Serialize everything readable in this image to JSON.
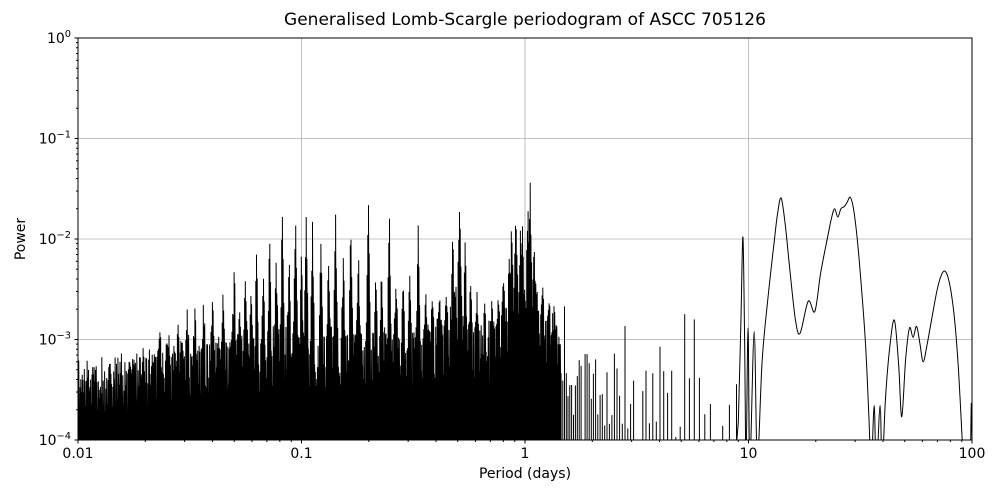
{
  "chart_data": {
    "type": "line",
    "title": "Generalised Lomb-Scargle periodogram of ASCC 705126",
    "xlabel": "Period (days)",
    "ylabel": "Power",
    "x_scale": "log",
    "y_scale": "log",
    "xlim": [
      0.01,
      100
    ],
    "ylim": [
      0.0001,
      1
    ],
    "grid": true,
    "legend": "none",
    "x_ticks": [
      {
        "value": 0.01,
        "label": "0.01"
      },
      {
        "value": 0.1,
        "label": "0.1"
      },
      {
        "value": 1,
        "label": "1"
      },
      {
        "value": 10,
        "label": "10"
      },
      {
        "value": 100,
        "label": "100"
      }
    ],
    "y_ticks": [
      {
        "value": 1,
        "base": "10",
        "exp": "0"
      },
      {
        "value": 0.1,
        "base": "10",
        "exp": "−1"
      },
      {
        "value": 0.01,
        "base": "10",
        "exp": "−2"
      },
      {
        "value": 0.001,
        "base": "10",
        "exp": "−3"
      },
      {
        "value": 0.0001,
        "base": "10",
        "exp": "−4"
      }
    ],
    "colors": {
      "line": "#000000",
      "grid": "#b0b0b0",
      "axes": "#000000",
      "background": "#ffffff",
      "text": "#000000"
    },
    "main_peaks": [
      {
        "period": 1.055,
        "power": 0.0365
      },
      {
        "period": 0.199,
        "power": 0.03
      },
      {
        "period": 28.5,
        "power": 0.026
      },
      {
        "period": 14.0,
        "power": 0.0255
      },
      {
        "period": 0.51,
        "power": 0.0233
      },
      {
        "period": 0.247,
        "power": 0.0228
      },
      {
        "period": 0.082,
        "power": 0.0208
      },
      {
        "period": 9.44,
        "power": 0.0105
      }
    ],
    "spikes": [
      [
        0.0232,
        0.0014
      ],
      [
        0.0255,
        0.0012
      ],
      [
        0.028,
        0.0016
      ],
      [
        0.0308,
        0.002
      ],
      [
        0.0334,
        0.0022
      ],
      [
        0.0364,
        0.0024
      ],
      [
        0.04,
        0.0026
      ],
      [
        0.0445,
        0.0028
      ],
      [
        0.05,
        0.0055
      ],
      [
        0.053,
        0.0022
      ],
      [
        0.056,
        0.004
      ],
      [
        0.0595,
        0.003
      ],
      [
        0.063,
        0.0081
      ],
      [
        0.0675,
        0.0045
      ],
      [
        0.072,
        0.0123
      ],
      [
        0.077,
        0.006
      ],
      [
        0.082,
        0.0208
      ],
      [
        0.088,
        0.0075
      ],
      [
        0.094,
        0.0181
      ],
      [
        0.1,
        0.008
      ],
      [
        0.105,
        0.0174
      ],
      [
        0.112,
        0.0148
      ],
      [
        0.122,
        0.01
      ],
      [
        0.132,
        0.006
      ],
      [
        0.142,
        0.019
      ],
      [
        0.154,
        0.0075
      ],
      [
        0.166,
        0.014
      ],
      [
        0.18,
        0.007
      ],
      [
        0.199,
        0.03
      ],
      [
        0.215,
        0.0045
      ],
      [
        0.228,
        0.005
      ],
      [
        0.247,
        0.0228
      ],
      [
        0.265,
        0.004
      ],
      [
        0.285,
        0.0042
      ],
      [
        0.305,
        0.0045
      ],
      [
        0.333,
        0.015
      ],
      [
        0.36,
        0.003
      ],
      [
        0.385,
        0.0025
      ],
      [
        0.415,
        0.0028
      ],
      [
        0.445,
        0.003
      ],
      [
        0.475,
        0.012
      ],
      [
        0.51,
        0.0233
      ],
      [
        0.54,
        0.01
      ],
      [
        0.57,
        0.004
      ],
      [
        0.61,
        0.003
      ],
      [
        0.66,
        0.0023
      ],
      [
        0.71,
        0.0025
      ],
      [
        0.76,
        0.003
      ],
      [
        0.8,
        0.004
      ],
      [
        0.85,
        0.0065
      ],
      [
        0.87,
        0.0148
      ],
      [
        0.91,
        0.0186
      ],
      [
        0.955,
        0.0132
      ],
      [
        0.975,
        0.0138
      ],
      [
        1.03,
        0.0234
      ],
      [
        1.055,
        0.0365
      ],
      [
        1.1,
        0.0087
      ],
      [
        1.13,
        0.0032
      ],
      [
        1.2,
        0.0034
      ],
      [
        1.28,
        0.0025
      ],
      [
        1.35,
        0.0022
      ],
      [
        1.5,
        0.003
      ],
      [
        1.7,
        0.002
      ],
      [
        1.85,
        0.0015
      ],
      [
        2.0,
        0.0017
      ],
      [
        2.2,
        0.0012
      ],
      [
        2.5,
        0.0019
      ],
      [
        2.8,
        0.0015
      ],
      [
        3.1,
        0.0024
      ],
      [
        3.4,
        0.0019
      ],
      [
        3.7,
        0.0028
      ],
      [
        4.0,
        0.002
      ],
      [
        4.4,
        0.0014
      ],
      [
        4.8,
        0.0018
      ],
      [
        5.2,
        0.0042
      ],
      [
        5.7,
        0.0035
      ],
      [
        6.2,
        0.0044
      ],
      [
        6.6,
        0.0021
      ],
      [
        7.0,
        0.0023
      ],
      [
        7.5,
        0.0012
      ],
      [
        8.0,
        0.0013
      ],
      [
        8.5,
        0.0022
      ]
    ],
    "noise_envelope": [
      [
        0.01,
        0.00055
      ],
      [
        0.015,
        0.00065
      ],
      [
        0.02,
        0.00075
      ],
      [
        0.03,
        0.0009
      ],
      [
        0.05,
        0.0011
      ],
      [
        0.08,
        0.00125
      ],
      [
        0.1,
        0.0013
      ],
      [
        0.15,
        0.0012
      ],
      [
        0.2,
        0.0013
      ],
      [
        0.25,
        0.00125
      ],
      [
        0.333,
        0.0013
      ],
      [
        0.45,
        0.0016
      ],
      [
        0.5,
        0.0035
      ],
      [
        0.53,
        0.0018
      ],
      [
        0.65,
        0.0013
      ],
      [
        0.75,
        0.0015
      ],
      [
        0.82,
        0.0022
      ],
      [
        0.9,
        0.0035
      ],
      [
        1.0,
        0.0042
      ],
      [
        1.08,
        0.003
      ],
      [
        1.15,
        0.002
      ],
      [
        1.3,
        0.0016
      ],
      [
        1.45,
        0.0014
      ]
    ],
    "strip_envelope": [
      [
        1.45,
        0.0013
      ],
      [
        2.0,
        0.0011
      ],
      [
        3.0,
        0.0011
      ],
      [
        5.0,
        0.001
      ],
      [
        7.0,
        0.0009
      ],
      [
        9.0,
        0.0008
      ]
    ],
    "smooth_tail": [
      [
        9.0,
        0.00015
      ],
      [
        9.25,
        0.0015
      ],
      [
        9.44,
        0.0105
      ],
      [
        9.6,
        0.0012
      ],
      [
        9.75,
        6e-05
      ],
      [
        9.95,
        0.0013
      ],
      [
        10.15,
        6e-05
      ],
      [
        10.6,
        0.0012
      ],
      [
        10.95,
        6e-05
      ],
      [
        11.5,
        0.0006
      ],
      [
        12.2,
        0.0025
      ],
      [
        13.0,
        0.009
      ],
      [
        13.5,
        0.018
      ],
      [
        14.0,
        0.0255
      ],
      [
        14.6,
        0.014
      ],
      [
        15.3,
        0.005
      ],
      [
        16.2,
        0.0016
      ],
      [
        17.0,
        0.00115
      ],
      [
        18.5,
        0.0024
      ],
      [
        19.8,
        0.0019
      ],
      [
        21.0,
        0.0045
      ],
      [
        22.3,
        0.009
      ],
      [
        23.5,
        0.016
      ],
      [
        24.3,
        0.02
      ],
      [
        25.1,
        0.0165
      ],
      [
        25.9,
        0.02
      ],
      [
        26.8,
        0.021
      ],
      [
        27.6,
        0.023
      ],
      [
        28.5,
        0.026
      ],
      [
        29.5,
        0.02
      ],
      [
        30.8,
        0.009
      ],
      [
        32.2,
        0.0028
      ],
      [
        33.5,
        0.0008
      ],
      [
        34.6,
        0.00016
      ],
      [
        35.4,
        5e-05
      ],
      [
        36.5,
        0.00022
      ],
      [
        37.3,
        5e-05
      ],
      [
        38.8,
        0.00022
      ],
      [
        39.6,
        5e-05
      ],
      [
        41.0,
        0.00026
      ],
      [
        43.0,
        0.0009
      ],
      [
        45.0,
        0.00155
      ],
      [
        47.0,
        0.00055
      ],
      [
        48.5,
        0.00017
      ],
      [
        50.5,
        0.00065
      ],
      [
        52.5,
        0.0013
      ],
      [
        54.5,
        0.00105
      ],
      [
        56.5,
        0.00135
      ],
      [
        58.5,
        0.0009
      ],
      [
        60.5,
        0.0006
      ],
      [
        63.0,
        0.0009
      ],
      [
        66.0,
        0.0016
      ],
      [
        70.0,
        0.0032
      ],
      [
        73.0,
        0.0044
      ],
      [
        75.5,
        0.0048
      ],
      [
        78.0,
        0.0042
      ],
      [
        81.0,
        0.0028
      ],
      [
        84.0,
        0.0014
      ],
      [
        87.0,
        0.0005
      ],
      [
        90.0,
        0.00012
      ],
      [
        92.0,
        5e-05
      ],
      [
        96.0,
        5e-05
      ],
      [
        98.2,
        6e-05
      ],
      [
        99.3,
        0.00023
      ],
      [
        100.0,
        0.0001
      ]
    ],
    "regions": {
      "dense_until": 1.45,
      "strips_until": 9.0
    }
  }
}
